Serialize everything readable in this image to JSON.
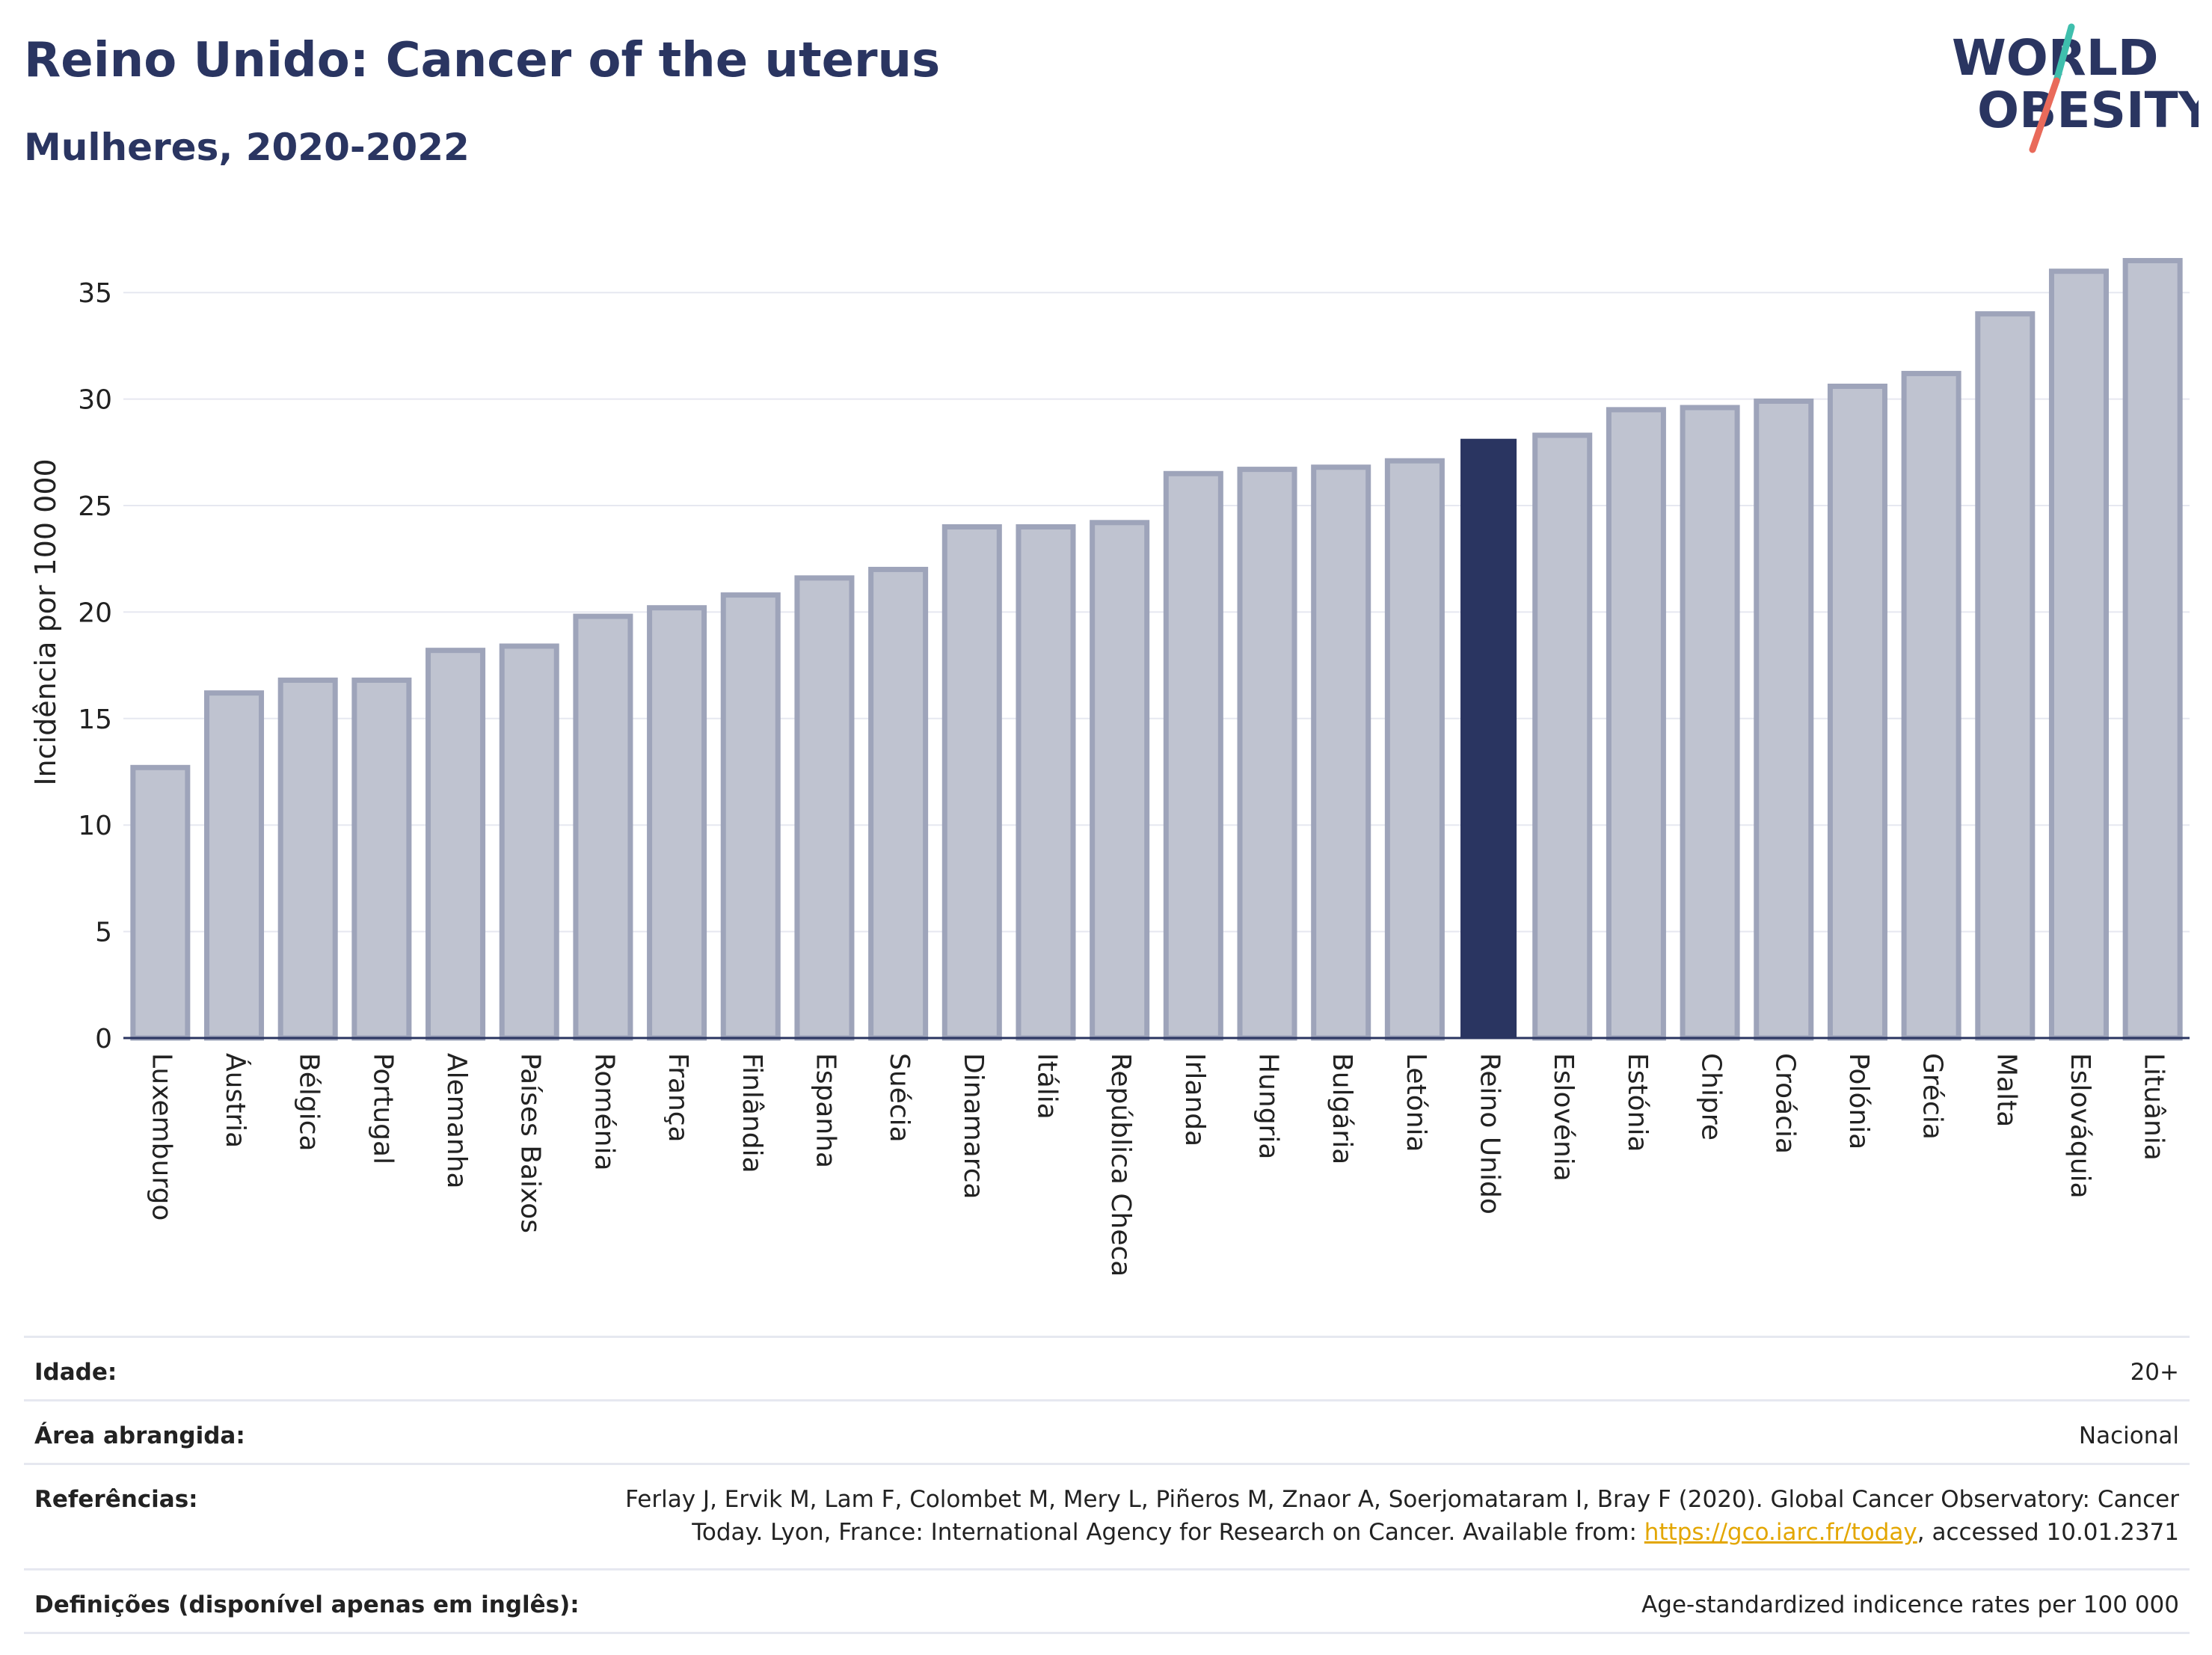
{
  "title": "Reino Unido: Cancer of the uterus",
  "subtitle": "Mulheres, 2020-2022",
  "logo": {
    "line1": "WORLD",
    "line2": "OBESITY",
    "slash_colors": [
      "#3fbfad",
      "#e96a5a"
    ]
  },
  "chart_data": {
    "type": "bar",
    "ylabel": "Incidência por 100 000",
    "ylim": [
      0,
      37.5
    ],
    "yticks": [
      0,
      5,
      10,
      15,
      20,
      25,
      30,
      35
    ],
    "grid": true,
    "highlight": "Reino Unido",
    "colors": {
      "bar": "#bfc3d0",
      "bar_border": "#9ea4ba",
      "highlight": "#2a3561",
      "grid": "#e6e8f0"
    },
    "categories": [
      "Luxemburgo",
      "Áustria",
      "Bélgica",
      "Portugal",
      "Alemanha",
      "Países Baixos",
      "Roménia",
      "França",
      "Finlândia",
      "Espanha",
      "Suécia",
      "Dinamarca",
      "Itália",
      "República Checa",
      "Irlanda",
      "Hungria",
      "Bulgária",
      "Letónia",
      "Reino Unido",
      "Eslovénia",
      "Estónia",
      "Chipre",
      "Croácia",
      "Polónia",
      "Grécia",
      "Malta",
      "Eslováquia",
      "Lituânia"
    ],
    "values": [
      12.7,
      16.2,
      16.8,
      16.8,
      18.2,
      18.4,
      19.8,
      20.2,
      20.8,
      21.6,
      22.0,
      24.0,
      24.0,
      24.2,
      26.5,
      26.7,
      26.8,
      27.1,
      28.1,
      28.3,
      29.5,
      29.6,
      29.9,
      30.6,
      31.2,
      34.0,
      36.0,
      36.5
    ]
  },
  "meta": {
    "age_label": "Idade:",
    "age_value": "20+",
    "area_label": "Área abrangida:",
    "area_value": "Nacional",
    "ref_label": "Referências:",
    "ref_line1": "Ferlay J, Ervik M, Lam F, Colombet M, Mery L, Piñeros M, Znaor A, Soerjomataram I, Bray F (2020). Global Cancer Observatory: Cancer",
    "ref_line2_pre": "Today. Lyon, France: International Agency for Research on Cancer. Available from: ",
    "ref_link": "https://gco.iarc.fr/today",
    "ref_line2_post": ", accessed 10.01.2371",
    "def_label": "Definições (disponível apenas em inglês):",
    "def_value": "Age-standardized indicence rates per 100 000"
  }
}
